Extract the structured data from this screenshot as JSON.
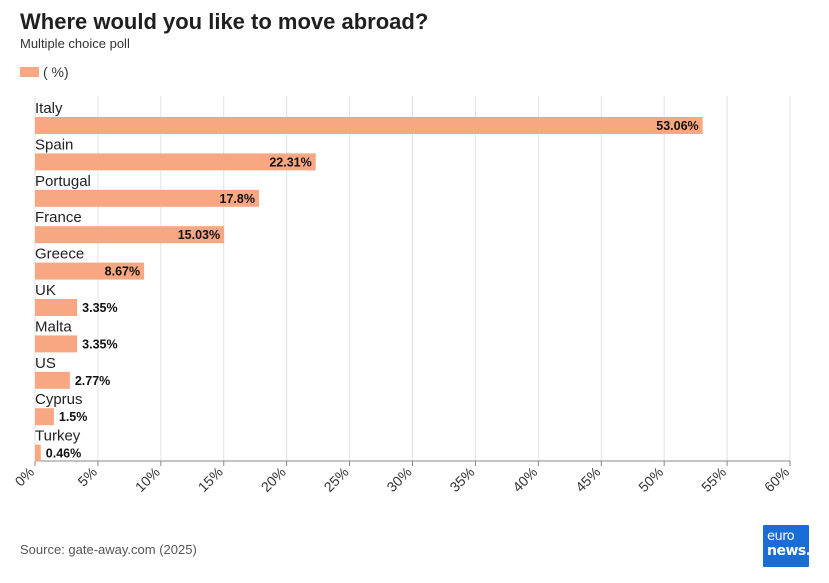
{
  "header": {
    "title": "Where would you like to move abroad?",
    "subtitle": "Multiple choice poll"
  },
  "legend": {
    "label": "( %)"
  },
  "footer": {
    "source": "Source: gate-away.com (2025)",
    "logo_line1": "euro",
    "logo_line2": "news."
  },
  "colors": {
    "bar": "#f7a882",
    "grid": "#e2e2e2",
    "axis": "#888888",
    "logo": "#1b6dd6"
  },
  "chart_data": {
    "type": "bar",
    "orientation": "horizontal",
    "title": "Where would you like to move abroad?",
    "subtitle": "Multiple choice poll",
    "categories": [
      "Italy",
      "Spain",
      "Portugal",
      "France",
      "Greece",
      "UK",
      "Malta",
      "US",
      "Cyprus",
      "Turkey"
    ],
    "series": [
      {
        "name": "( %)",
        "values": [
          53.06,
          22.31,
          17.8,
          15.03,
          8.67,
          3.35,
          3.35,
          2.77,
          1.5,
          0.46
        ]
      }
    ],
    "value_labels": [
      "53.06%",
      "22.31%",
      "17.8%",
      "15.03%",
      "8.67%",
      "3.35%",
      "3.35%",
      "2.77%",
      "1.5%",
      "0.46%"
    ],
    "xlim": [
      0,
      60
    ],
    "x_ticks": [
      "0%",
      "5%",
      "10%",
      "15%",
      "20%",
      "25%",
      "30%",
      "35%",
      "40%",
      "45%",
      "50%",
      "55%",
      "60%"
    ],
    "grid": true,
    "legend": "top-left"
  }
}
